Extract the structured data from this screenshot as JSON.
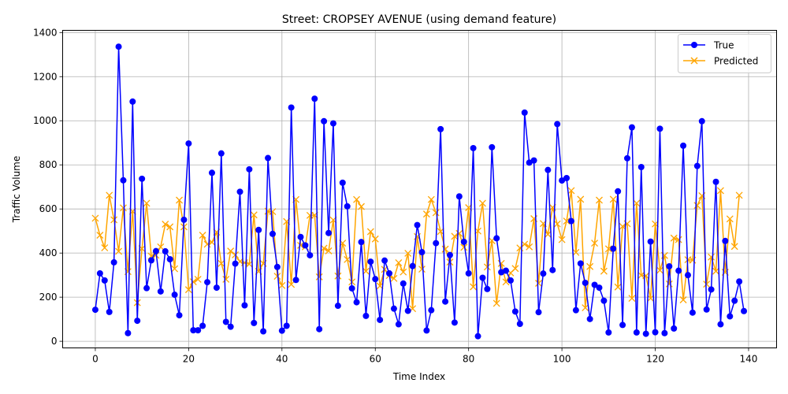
{
  "chart_data": {
    "type": "line",
    "title": "Street: CROPSEY AVENUE (using demand feature)",
    "xlabel": "Time Index",
    "ylabel": "Traffic Volume",
    "xlim": [
      -7,
      146
    ],
    "ylim": [
      -30,
      1410
    ],
    "xticks": [
      0,
      20,
      40,
      60,
      80,
      100,
      120,
      140
    ],
    "yticks": [
      0,
      200,
      400,
      600,
      800,
      1000,
      1200,
      1400
    ],
    "grid": true,
    "legend_position": "top-right",
    "series": [
      {
        "name": "True",
        "color": "#0000ff",
        "marker": "circle",
        "values": [
          143,
          308,
          276,
          133,
          358,
          1336,
          730,
          37,
          1087,
          93,
          737,
          241,
          367,
          409,
          226,
          408,
          372,
          211,
          118,
          551,
          897,
          50,
          50,
          70,
          268,
          764,
          243,
          852,
          88,
          66,
          352,
          678,
          163,
          780,
          83,
          505,
          45,
          831,
          487,
          337,
          48,
          70,
          1060,
          278,
          473,
          435,
          390,
          1100,
          55,
          998,
          491,
          988,
          161,
          719,
          612,
          240,
          177,
          450,
          115,
          361,
          282,
          97,
          366,
          308,
          148,
          77,
          262,
          138,
          341,
          527,
          404,
          49,
          141,
          445,
          962,
          180,
          391,
          85,
          657,
          451,
          308,
          876,
          23,
          288,
          237,
          880,
          467,
          313,
          320,
          276,
          135,
          79,
          1037,
          810,
          820,
          132,
          307,
          777,
          323,
          985,
          729,
          740,
          545,
          141,
          353,
          265,
          101,
          256,
          243,
          184,
          40,
          420,
          680,
          74,
          830,
          970,
          40,
          790,
          34,
          452,
          41,
          964,
          37,
          340,
          58,
          320,
          887,
          300,
          130,
          795,
          998,
          144,
          235,
          723,
          77,
          455,
          113,
          184,
          271,
          137
        ]
      },
      {
        "name": "Predicted",
        "color": "#ffa500",
        "marker": "x",
        "values": [
          558,
          481,
          424,
          662,
          551,
          408,
          605,
          316,
          589,
          175,
          420,
          626,
          386,
          390,
          428,
          531,
          519,
          329,
          640,
          519,
          234,
          270,
          281,
          481,
          440,
          449,
          495,
          353,
          281,
          409,
          392,
          362,
          356,
          350,
          573,
          317,
          353,
          590,
          588,
          295,
          253,
          543,
          258,
          643,
          435,
          428,
          571,
          572,
          292,
          422,
          410,
          550,
          296,
          445,
          371,
          269,
          643,
          611,
          318,
          497,
          464,
          251,
          326,
          298,
          285,
          356,
          314,
          399,
          148,
          475,
          327,
          577,
          643,
          583,
          498,
          418,
          359,
          476,
          489,
          426,
          606,
          247,
          500,
          626,
          337,
          456,
          172,
          353,
          269,
          310,
          330,
          423,
          440,
          428,
          556,
          263,
          534,
          485,
          607,
          532,
          461,
          545,
          683,
          403,
          644,
          152,
          339,
          445,
          640,
          318,
          419,
          644,
          246,
          521,
          533,
          195,
          626,
          299,
          297,
          195,
          532,
          322,
          389,
          260,
          468,
          461,
          188,
          370,
          368,
          616,
          660,
          259,
          382,
          318,
          683,
          313,
          555,
          430,
          662
        ]
      }
    ]
  }
}
